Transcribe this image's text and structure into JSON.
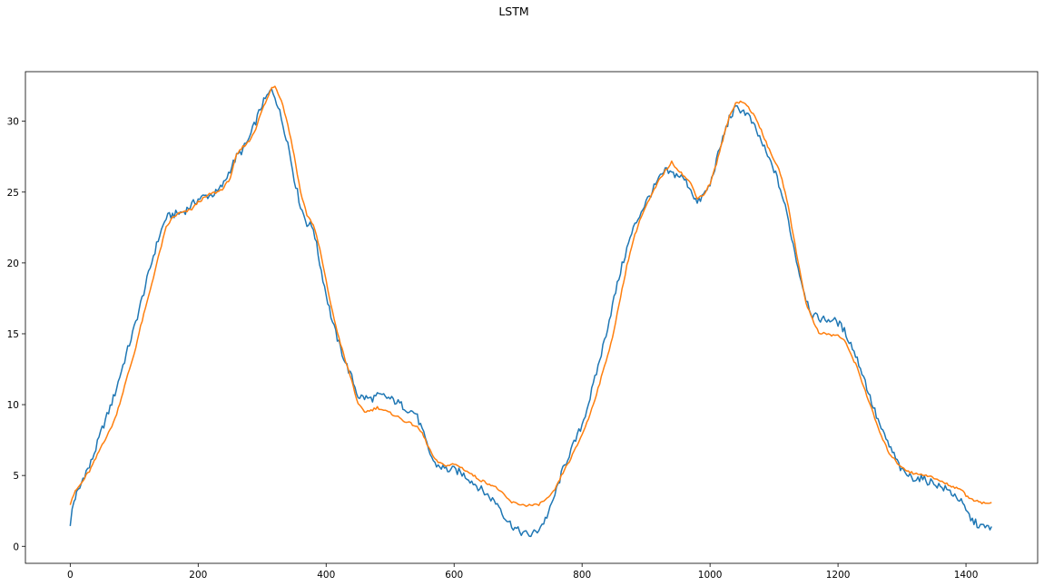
{
  "chart_data": {
    "type": "line",
    "title": "LSTM",
    "xlabel": "",
    "ylabel": "",
    "xlim": [
      -70,
      1512
    ],
    "ylim": [
      -1.2,
      33.5
    ],
    "xticks": [
      0,
      200,
      400,
      600,
      800,
      1000,
      1200,
      1400
    ],
    "yticks": [
      0,
      5,
      10,
      15,
      20,
      25,
      30
    ],
    "grid": false,
    "legend": "none",
    "series": [
      {
        "color": "#1f77b4",
        "x": [
          0,
          3,
          6,
          10,
          15,
          20,
          25,
          30,
          40,
          50,
          60,
          70,
          80,
          90,
          100,
          110,
          120,
          130,
          140,
          150,
          160,
          170,
          180,
          190,
          200,
          210,
          220,
          230,
          240,
          250,
          260,
          270,
          280,
          290,
          300,
          310,
          315,
          320,
          330,
          340,
          350,
          360,
          370,
          380,
          390,
          400,
          410,
          420,
          430,
          440,
          450,
          460,
          470,
          480,
          490,
          500,
          510,
          520,
          530,
          540,
          550,
          560,
          570,
          580,
          590,
          600,
          610,
          620,
          630,
          640,
          650,
          660,
          670,
          680,
          690,
          700,
          710,
          720,
          730,
          740,
          750,
          760,
          770,
          780,
          790,
          800,
          810,
          820,
          830,
          840,
          850,
          860,
          870,
          880,
          890,
          900,
          910,
          920,
          930,
          940,
          950,
          960,
          970,
          980,
          990,
          1000,
          1010,
          1020,
          1030,
          1040,
          1050,
          1060,
          1070,
          1080,
          1090,
          1100,
          1110,
          1120,
          1130,
          1140,
          1150,
          1160,
          1170,
          1180,
          1190,
          1200,
          1210,
          1220,
          1230,
          1240,
          1250,
          1260,
          1270,
          1280,
          1290,
          1300,
          1310,
          1320,
          1330,
          1340,
          1350,
          1360,
          1370,
          1380,
          1390,
          1400,
          1410,
          1420,
          1430,
          1440
        ],
        "values": [
          1.3,
          2.6,
          3.2,
          3.7,
          4.1,
          4.8,
          5.3,
          5.6,
          6.9,
          8.3,
          9.5,
          10.8,
          12.4,
          13.9,
          15.4,
          17.1,
          18.8,
          20.5,
          22.0,
          23.2,
          23.4,
          23.5,
          23.7,
          24.1,
          24.5,
          24.7,
          24.8,
          25.0,
          25.6,
          26.6,
          27.5,
          28.0,
          28.8,
          30.0,
          31.2,
          31.9,
          32.2,
          31.8,
          30.2,
          28.5,
          26.0,
          24.0,
          22.8,
          22.5,
          20.0,
          17.8,
          15.8,
          14.3,
          13.0,
          11.9,
          10.6,
          10.5,
          10.4,
          10.6,
          10.6,
          10.4,
          10.2,
          9.9,
          9.6,
          9.4,
          8.2,
          6.8,
          5.8,
          5.6,
          5.4,
          5.4,
          5.2,
          4.9,
          4.5,
          4.1,
          3.7,
          3.3,
          2.9,
          2.0,
          1.5,
          1.1,
          0.9,
          0.8,
          1.1,
          1.7,
          2.6,
          4.0,
          5.4,
          6.5,
          7.5,
          8.6,
          10.1,
          11.8,
          13.6,
          15.5,
          17.5,
          19.4,
          21.0,
          22.4,
          23.4,
          24.3,
          25.1,
          25.9,
          26.5,
          26.3,
          26.2,
          25.9,
          25.2,
          24.2,
          24.8,
          25.5,
          27.2,
          28.8,
          30.2,
          30.9,
          30.8,
          30.4,
          29.5,
          28.6,
          27.5,
          26.6,
          25.2,
          23.5,
          21.3,
          19.2,
          17.5,
          16.3,
          16.1,
          16.0,
          16.0,
          15.8,
          15.2,
          14.3,
          13.2,
          12.0,
          10.5,
          9.2,
          8.0,
          7.1,
          6.2,
          5.3,
          5.0,
          4.8,
          4.8,
          4.6,
          4.5,
          4.2,
          4.0,
          3.7,
          3.3,
          2.5,
          1.8,
          1.5,
          1.3,
          1.4
        ]
      },
      {
        "color": "#ff7f0e",
        "x": [
          0,
          3,
          6,
          10,
          15,
          20,
          25,
          30,
          40,
          50,
          60,
          70,
          80,
          90,
          100,
          110,
          120,
          130,
          140,
          150,
          160,
          170,
          180,
          190,
          200,
          210,
          220,
          230,
          240,
          250,
          260,
          270,
          280,
          290,
          300,
          310,
          315,
          320,
          330,
          340,
          350,
          360,
          370,
          380,
          390,
          400,
          410,
          420,
          430,
          440,
          450,
          460,
          470,
          480,
          490,
          500,
          510,
          520,
          530,
          540,
          550,
          560,
          570,
          580,
          590,
          600,
          610,
          620,
          630,
          640,
          650,
          660,
          670,
          680,
          690,
          700,
          710,
          720,
          730,
          740,
          750,
          760,
          770,
          780,
          790,
          800,
          810,
          820,
          830,
          840,
          850,
          860,
          870,
          880,
          890,
          900,
          910,
          920,
          930,
          940,
          950,
          960,
          970,
          980,
          990,
          1000,
          1010,
          1020,
          1030,
          1040,
          1050,
          1060,
          1070,
          1080,
          1090,
          1100,
          1110,
          1120,
          1130,
          1140,
          1150,
          1160,
          1170,
          1180,
          1190,
          1200,
          1210,
          1220,
          1230,
          1240,
          1250,
          1260,
          1270,
          1280,
          1290,
          1300,
          1310,
          1320,
          1330,
          1340,
          1350,
          1360,
          1370,
          1380,
          1390,
          1400,
          1410,
          1420,
          1430,
          1440
        ],
        "values": [
          3.0,
          3.4,
          3.7,
          4.0,
          4.3,
          4.6,
          5.0,
          5.3,
          6.2,
          7.2,
          8.0,
          9.0,
          10.5,
          12.1,
          13.6,
          15.5,
          17.2,
          19.0,
          20.8,
          22.5,
          23.2,
          23.5,
          23.6,
          23.8,
          24.3,
          24.6,
          24.9,
          25.0,
          25.3,
          26.0,
          27.6,
          28.2,
          28.6,
          29.5,
          30.8,
          31.8,
          32.4,
          32.5,
          31.5,
          29.8,
          27.6,
          25.0,
          23.4,
          22.7,
          21.0,
          18.7,
          16.5,
          14.7,
          13.1,
          11.7,
          10.0,
          9.5,
          9.6,
          9.8,
          9.6,
          9.4,
          9.2,
          8.9,
          8.7,
          8.5,
          8.0,
          7.0,
          6.1,
          5.8,
          5.7,
          5.8,
          5.6,
          5.3,
          5.0,
          4.7,
          4.5,
          4.3,
          4.0,
          3.5,
          3.1,
          3.0,
          2.9,
          2.9,
          2.9,
          3.2,
          3.5,
          4.2,
          5.2,
          6.0,
          6.9,
          7.9,
          9.0,
          10.4,
          11.9,
          13.5,
          15.2,
          17.6,
          19.8,
          21.6,
          23.0,
          24.0,
          24.9,
          25.8,
          26.5,
          27.1,
          26.6,
          26.1,
          25.6,
          24.6,
          24.8,
          25.6,
          27.0,
          28.7,
          30.3,
          31.3,
          31.4,
          31.0,
          30.3,
          29.4,
          28.2,
          27.3,
          26.3,
          24.5,
          22.0,
          19.5,
          17.2,
          16.0,
          15.1,
          15.0,
          14.9,
          14.9,
          14.5,
          13.6,
          12.6,
          11.3,
          10.0,
          8.7,
          7.5,
          6.6,
          6.0,
          5.6,
          5.3,
          5.1,
          5.1,
          5.0,
          4.8,
          4.6,
          4.4,
          4.2,
          4.1,
          3.6,
          3.3,
          3.2,
          3.0,
          3.1
        ]
      }
    ]
  }
}
